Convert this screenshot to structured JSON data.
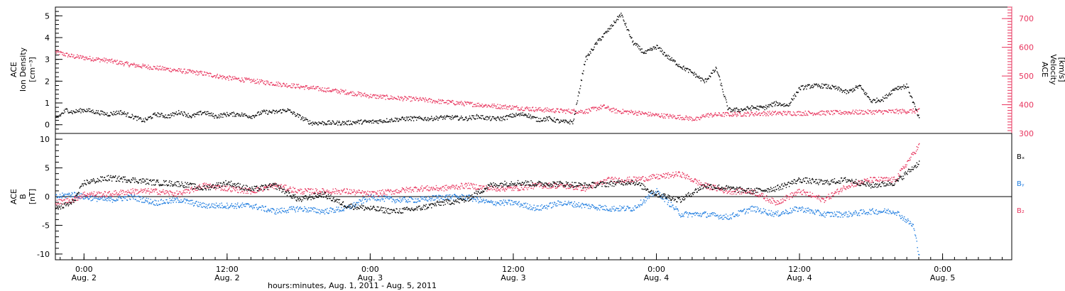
{
  "colors": {
    "black": "#000000",
    "pink": "#e8355e",
    "blue": "#1f7de0"
  },
  "footer": {
    "xlabel": "hours:minutes, Aug.  1, 2011 - Aug.  5, 2011"
  },
  "x_ticks": [
    {
      "t": 0.0,
      "time": "0:00",
      "date": "Aug. 2"
    },
    {
      "t": 12.0,
      "time": "12:00",
      "date": "Aug. 2"
    },
    {
      "t": 24.0,
      "time": "0:00",
      "date": "Aug. 3"
    },
    {
      "t": 36.0,
      "time": "12:00",
      "date": "Aug. 3"
    },
    {
      "t": 48.0,
      "time": "0:00",
      "date": "Aug. 4"
    },
    {
      "t": 60.0,
      "time": "12:00",
      "date": "Aug. 4"
    },
    {
      "t": 72.0,
      "time": "0:00",
      "date": "Aug. 5"
    }
  ],
  "chart_data": [
    {
      "type": "scatter",
      "xlabel": "hours:minutes, Aug.  1, 2011 - Aug.  5, 2011",
      "x_unit": "hours since 0:00 Aug. 2, 2011",
      "xlim": [
        -2.4,
        77.8
      ],
      "left_axis": {
        "label_lines": [
          "ACE",
          "Ion Density",
          "[cm⁻³]"
        ],
        "ylim": [
          -0.4,
          5.4
        ],
        "ticks": [
          0,
          1,
          2,
          3,
          4,
          5
        ],
        "color": "#000000"
      },
      "right_axis": {
        "label_lines": [
          "ACE",
          "Velocity",
          "[km/s]"
        ],
        "ylim": [
          300,
          740
        ],
        "ticks": [
          300,
          400,
          500,
          600,
          700
        ],
        "color": "#e8355e"
      },
      "series": [
        {
          "axis": "left",
          "color": "#000000",
          "x": [
            -2.4,
            -1.5,
            -1,
            0,
            1,
            2,
            3,
            4,
            5,
            6,
            7,
            8,
            9,
            10,
            11,
            12,
            13,
            14,
            15,
            16,
            17,
            18,
            19,
            20,
            21,
            22,
            23,
            24,
            25,
            26,
            27,
            28,
            29,
            30,
            31,
            32,
            33,
            34,
            35,
            36,
            37,
            38,
            39,
            40,
            41,
            42,
            43,
            44,
            45,
            46,
            47,
            48,
            49,
            50,
            51,
            52,
            53,
            54,
            55,
            56,
            57,
            58,
            59,
            60,
            61,
            62,
            63,
            64,
            65,
            66,
            67,
            68,
            69,
            70
          ],
          "y": [
            0.3,
            0.7,
            0.6,
            0.7,
            0.6,
            0.5,
            0.6,
            0.4,
            0.2,
            0.5,
            0.4,
            0.6,
            0.4,
            0.6,
            0.4,
            0.5,
            0.5,
            0.4,
            0.6,
            0.6,
            0.7,
            0.4,
            0.1,
            0.1,
            0.1,
            0.1,
            0.15,
            0.15,
            0.2,
            0.25,
            0.3,
            0.3,
            0.3,
            0.35,
            0.35,
            0.3,
            0.4,
            0.3,
            0.3,
            0.45,
            0.5,
            0.25,
            0.3,
            0.15,
            0.15,
            3.0,
            3.8,
            4.4,
            5.1,
            3.8,
            3.3,
            3.6,
            3.1,
            2.7,
            2.4,
            2.0,
            2.6,
            0.7,
            0.7,
            0.8,
            0.8,
            1.0,
            0.9,
            1.7,
            1.8,
            1.8,
            1.7,
            1.5,
            1.8,
            1.1,
            1.2,
            1.7,
            1.8,
            0.3
          ]
        },
        {
          "axis": "right",
          "color": "#e8355e",
          "x": [
            -2.4,
            -1,
            0,
            2,
            4,
            6,
            8,
            10,
            12,
            14,
            16,
            18,
            20,
            22,
            24,
            26,
            28,
            30,
            32,
            34,
            36,
            38,
            40,
            42,
            43.5,
            44.5,
            46,
            48,
            50,
            51.5,
            52,
            54,
            56,
            58,
            60,
            62,
            64,
            66,
            68,
            70
          ],
          "y": [
            585,
            570,
            565,
            555,
            540,
            530,
            520,
            510,
            495,
            485,
            475,
            465,
            455,
            445,
            432,
            425,
            420,
            412,
            405,
            398,
            392,
            385,
            380,
            378,
            395,
            380,
            375,
            365,
            358,
            350,
            365,
            368,
            370,
            372,
            372,
            373,
            375,
            376,
            378,
            380
          ]
        }
      ]
    },
    {
      "type": "scatter",
      "x_unit": "hours since 0:00 Aug. 2, 2011",
      "xlim": [
        -2.4,
        77.8
      ],
      "left_axis": {
        "label_lines": [
          "ACE",
          "B",
          "[nT]"
        ],
        "ylim": [
          -11,
          11
        ],
        "ticks": [
          -10,
          -5,
          0,
          5,
          10
        ],
        "color": "#000000"
      },
      "legend": [
        "Bₓ",
        "Bᵧ",
        "B₂"
      ],
      "series": [
        {
          "name": "Bₓ",
          "color": "#000000",
          "x": [
            -2.4,
            -1,
            0,
            2,
            4,
            6,
            8,
            10,
            12,
            14,
            16,
            18,
            20,
            22,
            24,
            26,
            28,
            30,
            32,
            34,
            36,
            38,
            40,
            42,
            44,
            46,
            48,
            50,
            52,
            54,
            56,
            58,
            60,
            62,
            64,
            66,
            68,
            70
          ],
          "y": [
            -2,
            -1,
            2.5,
            3.3,
            3,
            2.5,
            2.3,
            1.5,
            2.5,
            1.3,
            2,
            -0.5,
            0.5,
            -1.5,
            -2,
            -2.5,
            -2,
            -1,
            -0.5,
            2,
            2.5,
            2.3,
            2.3,
            2,
            2.3,
            2.7,
            0.5,
            -0.5,
            2,
            1.5,
            1,
            1.5,
            3,
            2.5,
            3,
            2,
            2.5,
            6
          ]
        },
        {
          "name": "Bᵧ",
          "color": "#1f7de0",
          "x": [
            -2.4,
            -1,
            0,
            2,
            4,
            6,
            8,
            10,
            12,
            14,
            16,
            18,
            20,
            22,
            24,
            26,
            28,
            30,
            32,
            34,
            36,
            38,
            40,
            42,
            44,
            46,
            48,
            50,
            52,
            54,
            56,
            58,
            60,
            62,
            64,
            66,
            68,
            69.5,
            70
          ],
          "y": [
            0,
            0.5,
            0,
            -0.5,
            0,
            -1,
            -0.5,
            -1.5,
            -1.5,
            -1.5,
            -2.5,
            -2,
            -2.5,
            -2,
            0,
            -0.5,
            -0.5,
            0,
            0,
            -1,
            -1,
            -2,
            -1,
            -1.5,
            -2,
            -2,
            1,
            -3,
            -3,
            -3.5,
            -2,
            -3,
            -2,
            -3,
            -3,
            -2.5,
            -2.5,
            -5,
            -10
          ]
        },
        {
          "name": "B₂",
          "color": "#e8355e",
          "x": [
            -2.4,
            -1,
            0,
            2,
            4,
            6,
            8,
            10,
            12,
            14,
            16,
            18,
            20,
            22,
            24,
            26,
            28,
            30,
            32,
            34,
            36,
            38,
            40,
            42,
            44,
            46,
            48,
            50,
            52,
            54,
            56,
            58,
            60,
            62,
            64,
            66,
            68,
            70
          ],
          "y": [
            -1,
            -0.5,
            0.5,
            0.5,
            1,
            1,
            0.5,
            2,
            1.5,
            1,
            2,
            1,
            1,
            1,
            0.5,
            1,
            1.5,
            1.5,
            2,
            1.5,
            1.5,
            2,
            2,
            1.5,
            3,
            3,
            3.5,
            4,
            2,
            1,
            1,
            -1,
            1,
            -0.5,
            2,
            3,
            3,
            9
          ]
        }
      ]
    }
  ]
}
